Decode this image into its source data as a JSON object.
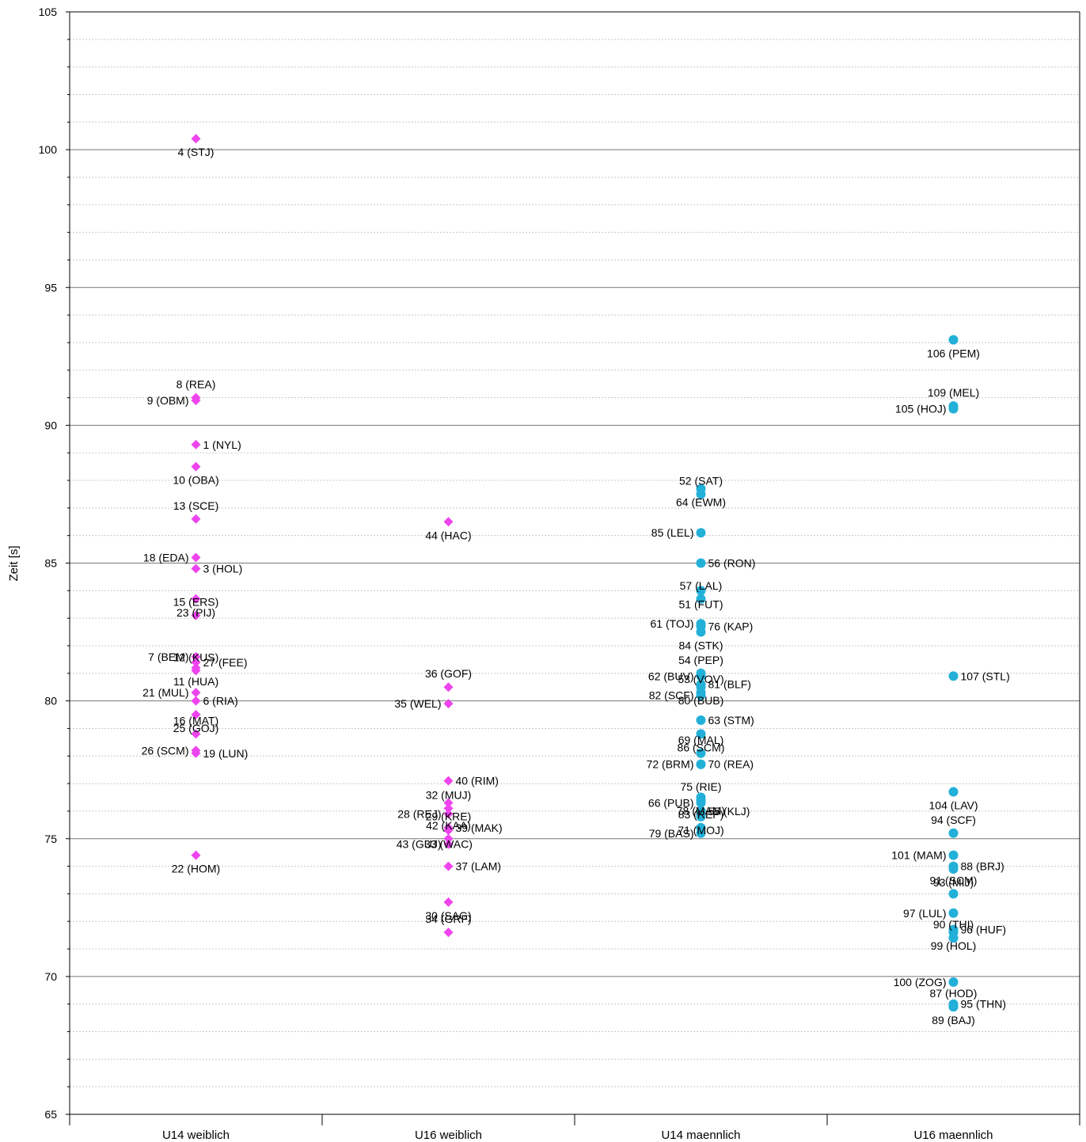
{
  "chart_data": {
    "type": "scatter",
    "title": "",
    "xlabel": "",
    "ylabel": "Zeit [s]",
    "ylim": [
      65,
      105
    ],
    "yticks": [
      65,
      70,
      75,
      80,
      85,
      90,
      95,
      100,
      105
    ],
    "grid": {
      "major": true,
      "minor": true
    },
    "legend": "none",
    "categories": [
      "U14 weiblich",
      "U16 weiblich",
      "U14 maennlich",
      "U16 maennlich"
    ],
    "colors": {
      "weiblich": "#ee44ee",
      "maennlich": "#22b0d8",
      "leader": "#ff0000"
    },
    "series": [
      {
        "category": "U14 weiblich",
        "marker": "diamond",
        "points": [
          {
            "label": "4 (STJ)",
            "y": 100.4
          },
          {
            "label": "8 (REA)",
            "y": 91.0
          },
          {
            "label": "9 (OBM)",
            "y": 90.9
          },
          {
            "label": "1 (NYL)",
            "y": 89.3
          },
          {
            "label": "10 (OBA)",
            "y": 88.5
          },
          {
            "label": "13 (SCE)",
            "y": 86.6
          },
          {
            "label": "18 (EDA)",
            "y": 85.2
          },
          {
            "label": "3 (HOL)",
            "y": 84.8
          },
          {
            "label": "23 (PIJ)",
            "y": 83.7
          },
          {
            "label": "15 (ERS)",
            "y": 83.1
          },
          {
            "label": "7 (BEM)",
            "y": 81.6
          },
          {
            "label": "27 (FEE)",
            "y": 81.4
          },
          {
            "label": "11 (HUA)",
            "y": 81.2
          },
          {
            "label": "12 (KUS)",
            "y": 81.1
          },
          {
            "label": "21 (MUL)",
            "y": 80.3
          },
          {
            "label": "6 (RIA)",
            "y": 80.0
          },
          {
            "label": "25 (GOJ)",
            "y": 79.5
          },
          {
            "label": "16 (MAT)",
            "y": 78.8
          },
          {
            "label": "26 (SCM)",
            "y": 78.2
          },
          {
            "label": "19 (LUN)",
            "y": 78.1
          },
          {
            "label": "22 (HOM)",
            "y": 74.4
          }
        ]
      },
      {
        "category": "U16 weiblich",
        "marker": "diamond",
        "points": [
          {
            "label": "44 (HAC)",
            "y": 86.5
          },
          {
            "label": "36 (GOF)",
            "y": 80.5
          },
          {
            "label": "35 (WEL)",
            "y": 79.9
          },
          {
            "label": "40 (RIM)",
            "y": 77.1
          },
          {
            "label": "29 (KRE)",
            "y": 76.3
          },
          {
            "label": "32 (MUJ)",
            "y": 76.1
          },
          {
            "label": "28 (REJ)",
            "y": 75.9
          },
          {
            "label": "39 (MAK)",
            "y": 75.4
          },
          {
            "label": "33 (WAC)",
            "y": 75.3
          },
          {
            "label": "42 (KAA)",
            "y": 75.0
          },
          {
            "label": "43 (GUJ)",
            "y": 74.8
          },
          {
            "label": "37 (LAM)",
            "y": 74.0
          },
          {
            "label": "30 (SAG)",
            "y": 72.7
          },
          {
            "label": "34 (GRF)",
            "y": 71.6
          }
        ]
      },
      {
        "category": "U14 maennlich",
        "marker": "circle",
        "points": [
          {
            "label": "64 (EWM)",
            "y": 87.7
          },
          {
            "label": "52 (SAT)",
            "y": 87.5
          },
          {
            "label": "85 (LEL)",
            "y": 86.1
          },
          {
            "label": "56 (RON)",
            "y": 85.0
          },
          {
            "label": "51 (FUT)",
            "y": 84.0
          },
          {
            "label": "57 (LAL)",
            "y": 83.7
          },
          {
            "label": "61 (TOJ)",
            "y": 82.8
          },
          {
            "label": "76 (KAP)",
            "y": 82.7
          },
          {
            "label": "84 (STK)",
            "y": 82.5
          },
          {
            "label": "54 (PEP)",
            "y": 81.0
          },
          {
            "label": "62 (BUV)",
            "y": 80.9
          },
          {
            "label": "81 (BLF)",
            "y": 80.6
          },
          {
            "label": "80 (BUB)",
            "y": 80.5
          },
          {
            "label": "53 (VOV)",
            "y": 80.3
          },
          {
            "label": "82 (SCF)",
            "y": 80.2
          },
          {
            "label": "63 (STM)",
            "y": 79.3
          },
          {
            "label": "86 (SCM)",
            "y": 78.8
          },
          {
            "label": "69 (MAL)",
            "y": 78.1
          },
          {
            "label": "72 (BRM)",
            "y": 77.7
          },
          {
            "label": "70 (REA)",
            "y": 77.7
          },
          {
            "label": "78 (MAM)",
            "y": 76.5
          },
          {
            "label": "75 (RIE)",
            "y": 76.4
          },
          {
            "label": "66 (PUB)",
            "y": 76.3
          },
          {
            "label": "55 (KLJ)",
            "y": 76.0
          },
          {
            "label": "71 (MOJ)",
            "y": 75.8
          },
          {
            "label": "83 (REP)",
            "y": 75.4
          },
          {
            "label": "79 (BAS)",
            "y": 75.2
          }
        ]
      },
      {
        "category": "U16 maennlich",
        "marker": "circle",
        "points": [
          {
            "label": "106 (PEM)",
            "y": 93.1
          },
          {
            "label": "109 (MEL)",
            "y": 90.7
          },
          {
            "label": "105 (HOJ)",
            "y": 90.6
          },
          {
            "label": "107 (STL)",
            "y": 80.9
          },
          {
            "label": "104 (LAV)",
            "y": 76.7
          },
          {
            "label": "94 (SCF)",
            "y": 75.2
          },
          {
            "label": "101 (MAM)",
            "y": 74.4
          },
          {
            "label": "88 (BRJ)",
            "y": 74.0
          },
          {
            "label": "93 (MIJ)",
            "y": 73.9
          },
          {
            "label": "91 (SCM)",
            "y": 73.0
          },
          {
            "label": "97 (LUL)",
            "y": 72.3
          },
          {
            "label": "96 (HUF)",
            "y": 71.7
          },
          {
            "label": "99 (HOL)",
            "y": 71.6
          },
          {
            "label": "90 (THI)",
            "y": 71.4
          },
          {
            "label": "100 (ZOG)",
            "y": 69.8
          },
          {
            "label": "95 (THN)",
            "y": 69.0
          },
          {
            "label": "89 (BAJ)",
            "y": 68.9
          },
          {
            "label": "87 (HOD)",
            "y": 68.9
          }
        ]
      }
    ]
  }
}
